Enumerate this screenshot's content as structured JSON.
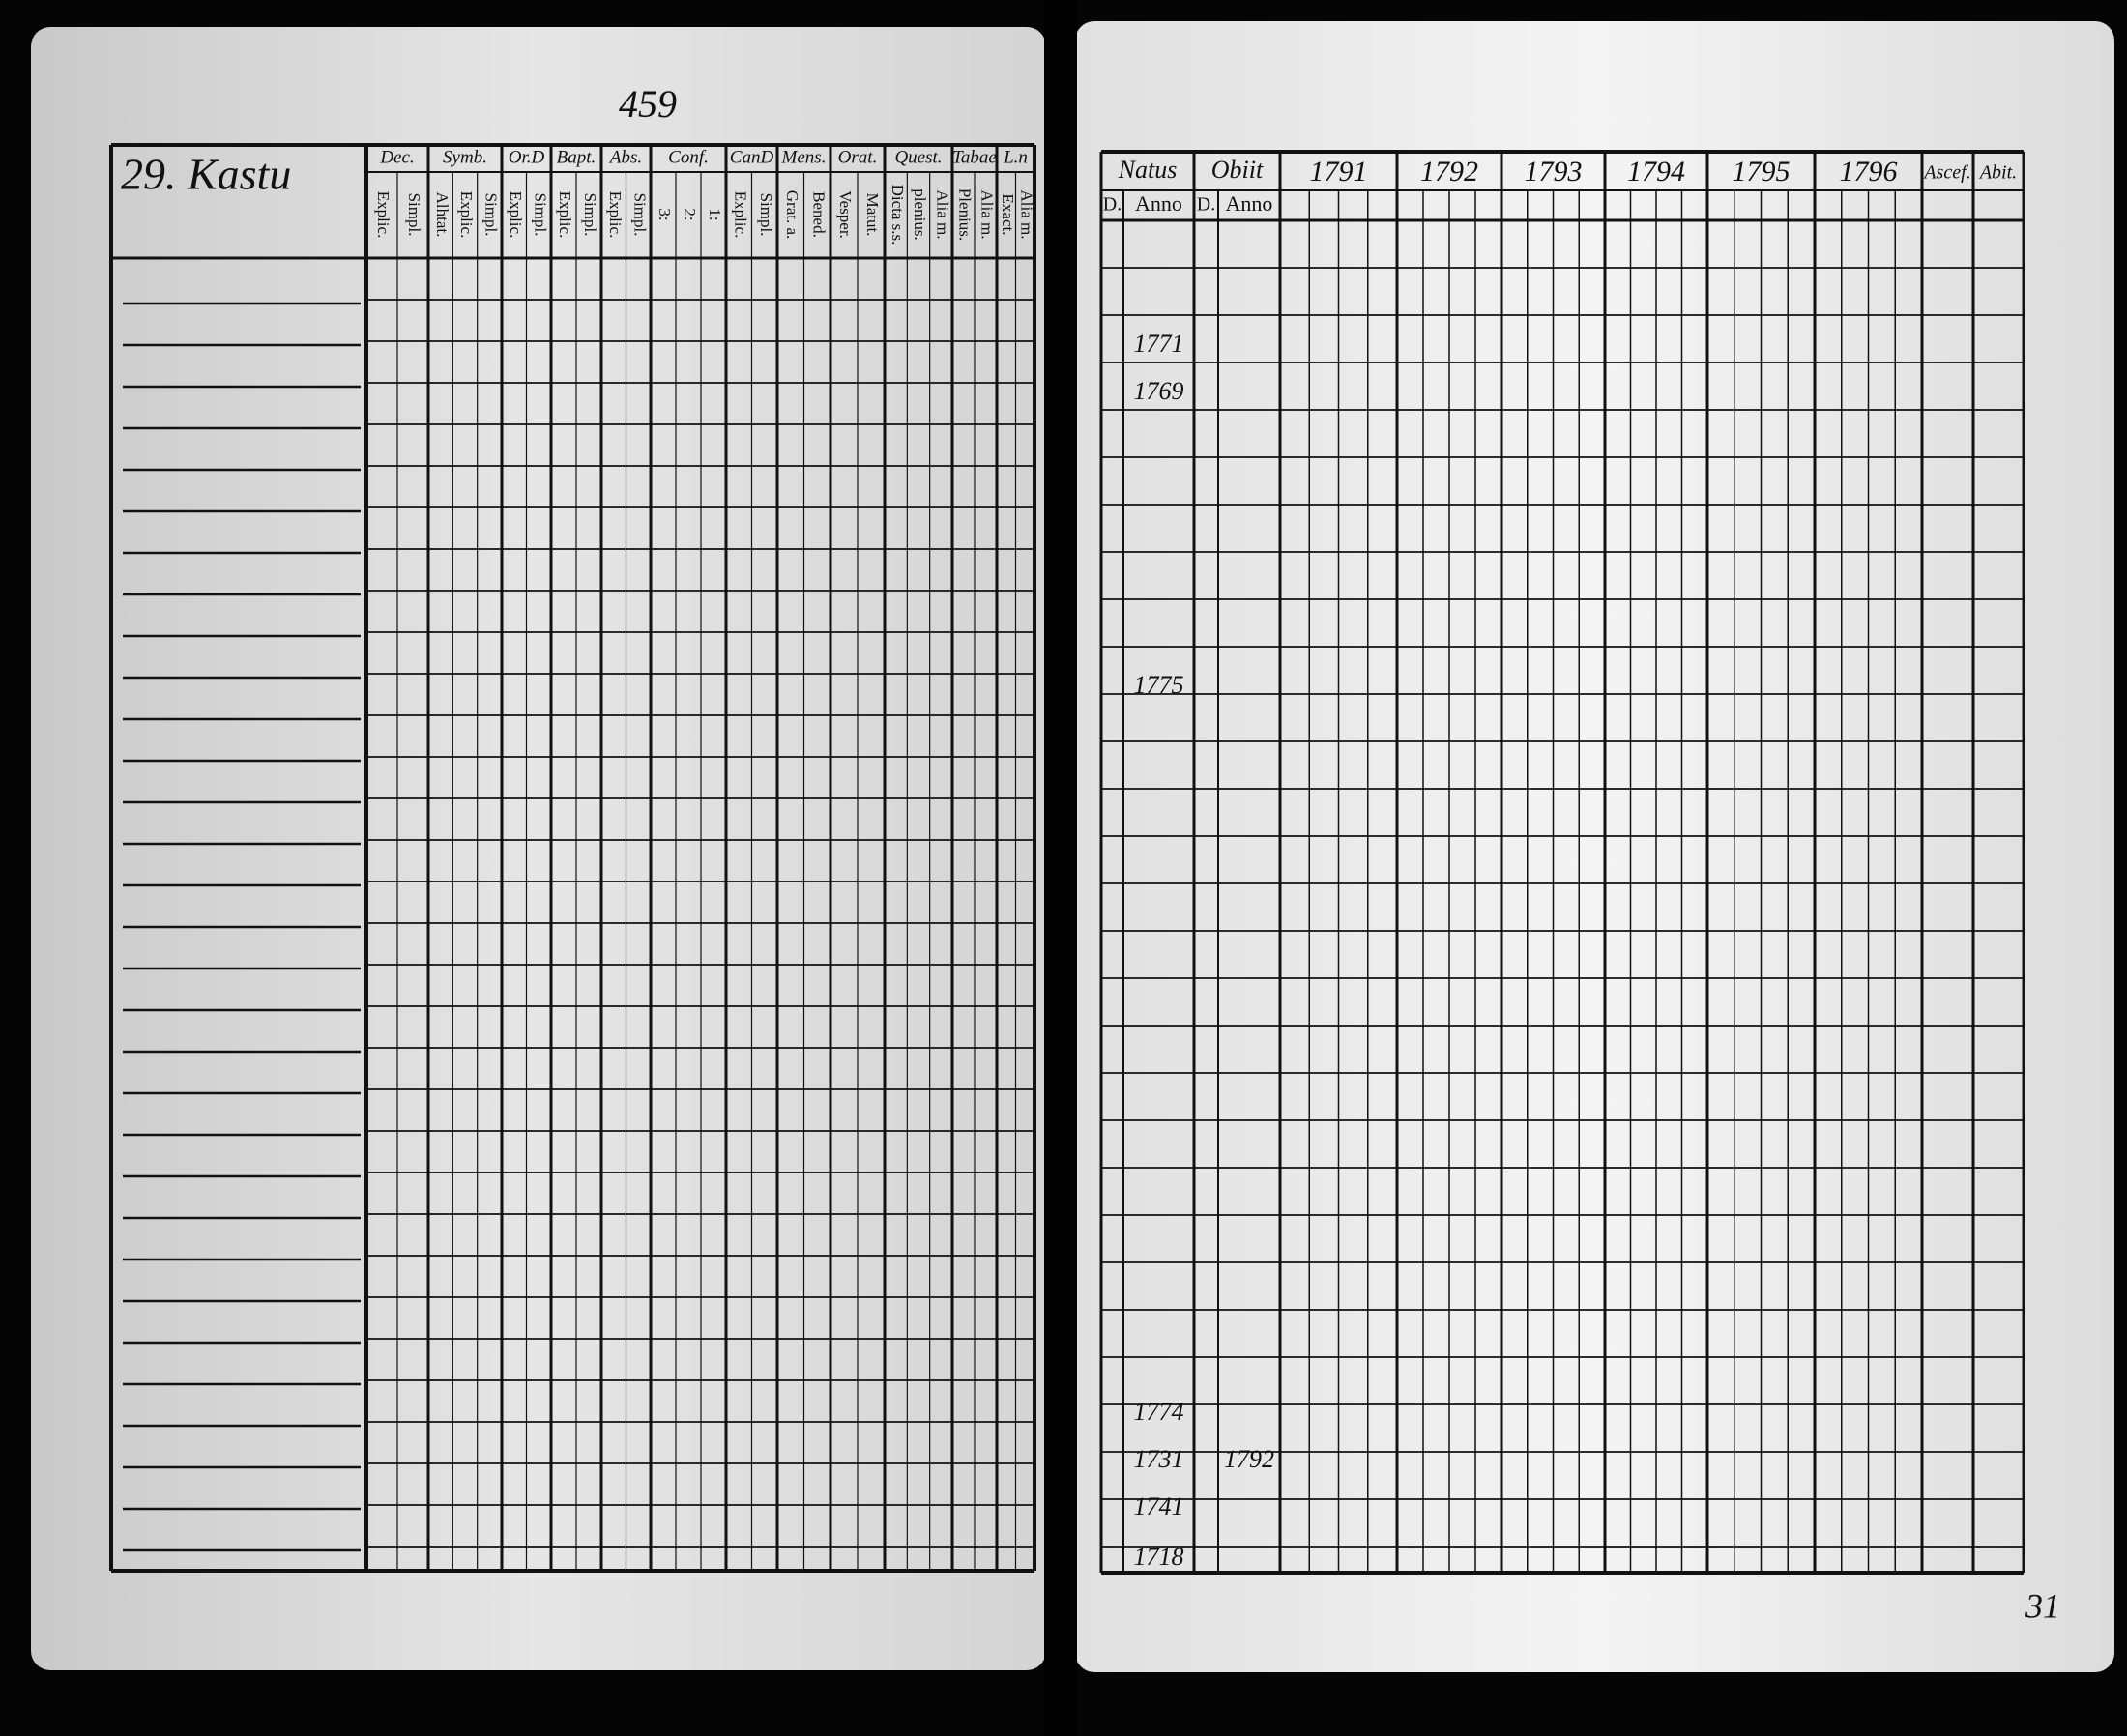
{
  "left_page": {
    "page_number": "459",
    "title": "29. Kastu",
    "columns": [
      {
        "header": "Dec.",
        "sub": [
          "Explic.",
          "Simpl."
        ]
      },
      {
        "header": "Symb.",
        "sub": [
          "Alhtat.",
          "Explic.",
          "Simpl."
        ]
      },
      {
        "header": "Or.D",
        "sub": [
          "Explic.",
          "Simpl."
        ]
      },
      {
        "header": "Bapt.",
        "sub": [
          "Explic.",
          "Simpl."
        ]
      },
      {
        "header": "Abs.",
        "sub": [
          "Explic.",
          "Simpl."
        ]
      },
      {
        "header": "Conf.",
        "sub": [
          "3:",
          "2:",
          "1:"
        ]
      },
      {
        "header": "CanD",
        "sub": [
          "Explic.",
          "Simpl."
        ]
      },
      {
        "header": "Mens.",
        "sub": [
          "Grat. a.",
          "Bened."
        ]
      },
      {
        "header": "Orat.",
        "sub": [
          "Vesper.",
          "Matut."
        ]
      },
      {
        "header": "Quest.",
        "sub": [
          "Dicta s.s.",
          "plenius.",
          "Alia m."
        ]
      },
      {
        "header": "Tabae",
        "sub": [
          "Plenius.",
          "Alia m."
        ]
      },
      {
        "header": "L.n",
        "sub": [
          "Exact.",
          "Alia m."
        ]
      }
    ]
  },
  "right_page": {
    "page_number": "31",
    "natus": {
      "header": "Natus",
      "day": "D.",
      "year": "Anno"
    },
    "obiit": {
      "header": "Obiit",
      "day": "D.",
      "year": "Anno"
    },
    "years": [
      "1791",
      "1792",
      "1793",
      "1794",
      "1795",
      "1796"
    ],
    "ascended": "Ascef.",
    "abit": "Abit.",
    "entries": [
      {
        "natus_anno": "1771"
      },
      {
        "natus_anno": "1769"
      },
      {
        "natus_anno": "1775"
      },
      {
        "natus_anno": "1774"
      },
      {
        "natus_anno": "1731",
        "obiit_anno": "1792"
      },
      {
        "natus_anno": "1741"
      },
      {
        "natus_anno": "1718"
      }
    ]
  }
}
